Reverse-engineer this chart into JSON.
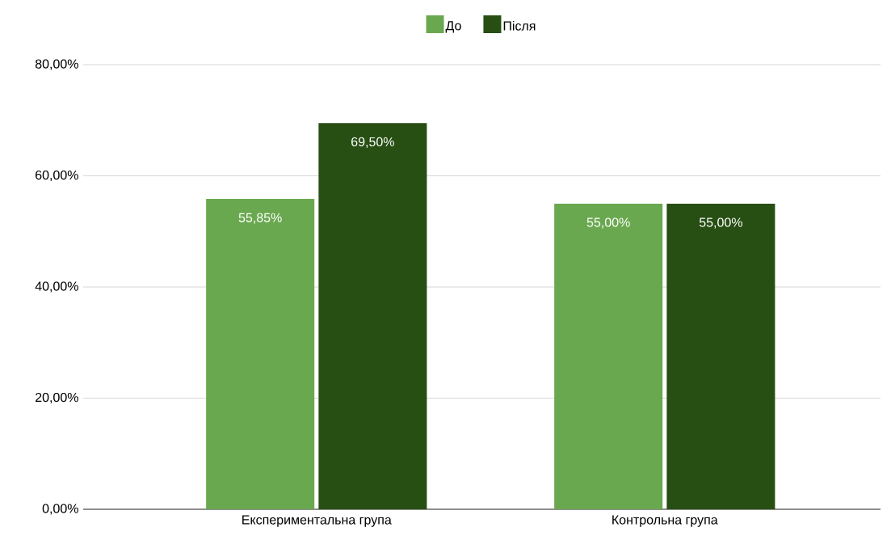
{
  "chart_data": {
    "type": "bar",
    "categories": [
      "Експериментальна група",
      "Контрольна група"
    ],
    "series": [
      {
        "name": "До",
        "color": "#6aa84f",
        "values": [
          55.85,
          55.0
        ],
        "value_labels": [
          "55,85%",
          "55,00%"
        ]
      },
      {
        "name": "Після",
        "color": "#274e13",
        "values": [
          69.5,
          55.0
        ],
        "value_labels": [
          "69,50%",
          "55,00%"
        ]
      }
    ],
    "ylim": [
      0,
      80
    ],
    "yticks": [
      {
        "value": 0,
        "label": "0,00%"
      },
      {
        "value": 20,
        "label": "20,00%"
      },
      {
        "value": 40,
        "label": "40,00%"
      },
      {
        "value": 60,
        "label": "60,00%"
      },
      {
        "value": 80,
        "label": "80,00%"
      }
    ],
    "grid": "y",
    "legend": "top"
  }
}
